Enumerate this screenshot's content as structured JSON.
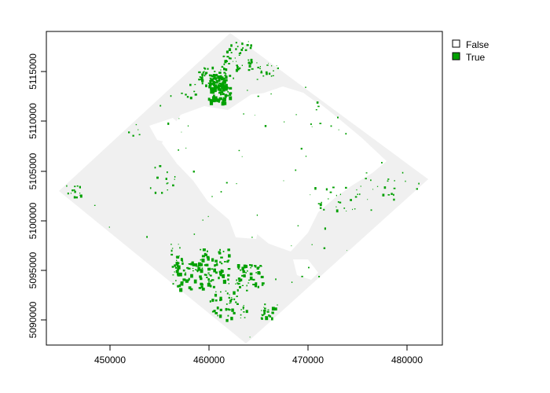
{
  "chart_data": {
    "type": "raster-map",
    "x_ticks": [
      "450000",
      "460000",
      "470000",
      "480000"
    ],
    "y_ticks": [
      "5090000",
      "5095000",
      "5100000",
      "5105000",
      "5110000",
      "5115000"
    ],
    "legend": [
      {
        "label": "False",
        "color": "#ffffff"
      },
      {
        "label": "True",
        "color": "#00a000"
      }
    ],
    "raster_background_color": "#f0f0f0",
    "raster_false_color": "#ffffff",
    "raster_true_color": "#00a000"
  }
}
